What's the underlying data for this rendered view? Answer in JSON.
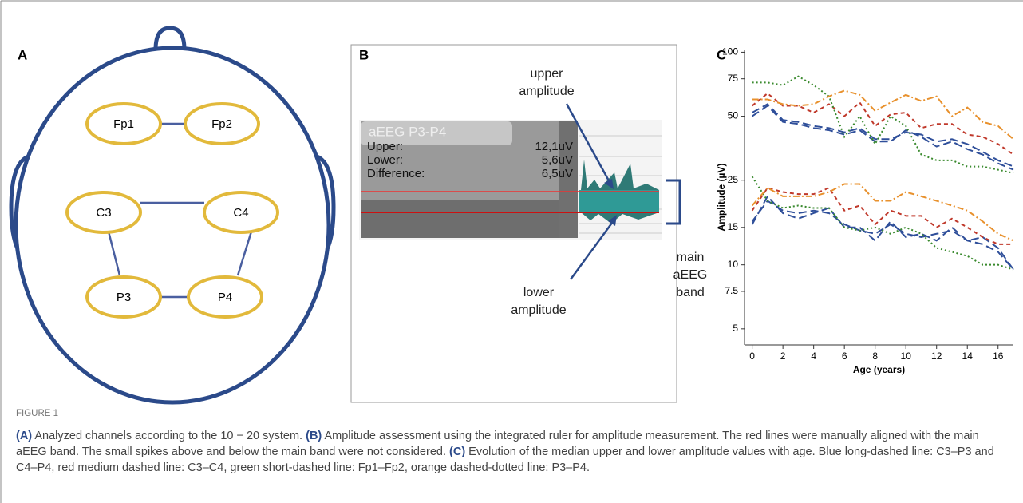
{
  "panels": {
    "a": {
      "label": "A",
      "electrodes": [
        "Fp1",
        "Fp2",
        "C3",
        "C4",
        "P3",
        "P4"
      ]
    },
    "b": {
      "label": "B",
      "box_title": "aEEG P3-P4",
      "rows": [
        [
          "Upper:",
          "12,1uV"
        ],
        [
          "Lower:",
          "5,6uV"
        ],
        [
          "Difference:",
          "6,5uV"
        ]
      ],
      "annotations": [
        "upper amplitude",
        "lower amplitude",
        "main aEEG band"
      ]
    },
    "c": {
      "label": "C"
    }
  },
  "chart_data": {
    "type": "line",
    "ylabel": "Amplitude (µV)",
    "xlabel": "Age (years)",
    "log_y": true,
    "x": [
      0,
      1,
      2,
      3,
      4,
      5,
      6,
      7,
      8,
      9,
      10,
      11,
      12,
      13,
      14,
      15,
      16,
      17
    ],
    "xlim": [
      -0.5,
      17
    ],
    "xticks": [
      0,
      2,
      4,
      6,
      8,
      10,
      12,
      14,
      16
    ],
    "ylim": [
      4.2,
      103
    ],
    "yticks": [
      5,
      7.5,
      10,
      15,
      25,
      50,
      75,
      100
    ],
    "series": [
      {
        "color": "#2f4f9a",
        "dash": "10,5",
        "values": [
          50,
          56,
          47,
          46,
          44,
          43,
          41,
          43,
          38,
          38,
          43,
          40,
          36,
          38,
          35,
          33,
          30,
          28
        ]
      },
      {
        "color": "#2f4f9a",
        "dash": "10,5",
        "values": [
          52,
          57,
          48,
          47,
          45,
          44,
          42,
          44,
          39,
          39,
          42,
          41,
          38,
          39,
          37,
          34,
          31,
          29
        ]
      },
      {
        "color": "#c0392b",
        "dash": "5,4",
        "values": [
          56,
          64,
          56,
          56,
          52,
          57,
          50,
          58,
          45,
          51,
          52,
          44,
          46,
          46,
          41,
          40,
          37,
          33
        ]
      },
      {
        "color": "#3a8a2e",
        "dash": "2,3",
        "values": [
          72,
          72,
          70,
          77,
          70,
          62,
          40,
          50,
          37,
          50,
          45,
          33,
          31,
          31,
          29,
          29,
          28,
          27
        ]
      },
      {
        "color": "#e8912d",
        "dash": "8,3,2,3",
        "values": [
          60,
          60,
          57,
          56,
          57,
          62,
          66,
          63,
          53,
          58,
          63,
          59,
          62,
          50,
          55,
          47,
          45,
          39
        ]
      },
      {
        "color": "#2f4f9a",
        "dash": "10,5",
        "values": [
          15.5,
          21,
          17.5,
          16.5,
          17.5,
          18.5,
          15,
          15,
          13,
          16,
          13.5,
          14,
          13,
          15,
          13,
          13.5,
          12,
          9.5
        ]
      },
      {
        "color": "#2f4f9a",
        "dash": "10,5",
        "values": [
          16,
          20,
          18,
          17.5,
          18,
          17.5,
          15.5,
          14.5,
          14,
          15.5,
          14,
          13.5,
          14,
          14.5,
          13,
          12.5,
          11.5,
          9.5
        ]
      },
      {
        "color": "#c0392b",
        "dash": "5,4",
        "values": [
          18,
          23,
          22,
          21.5,
          21.5,
          23,
          18,
          19,
          15.5,
          18,
          17,
          17,
          15,
          16.5,
          15,
          13.5,
          12.5,
          12.5
        ]
      },
      {
        "color": "#3a8a2e",
        "dash": "2,3",
        "values": [
          26,
          20,
          18.5,
          19,
          18.5,
          18.5,
          15,
          14.5,
          15,
          14,
          15,
          14,
          12,
          11.5,
          11,
          10,
          10,
          9.5
        ]
      },
      {
        "color": "#e8912d",
        "dash": "8,3,2,3",
        "values": [
          19,
          23,
          21,
          21,
          21,
          22,
          24,
          24,
          20,
          20,
          22,
          21,
          20,
          19,
          18,
          16,
          14,
          13
        ]
      }
    ]
  },
  "caption": {
    "label": "FIGURE 1",
    "segments": [
      [
        "(A)",
        " Analyzed channels according to the 10 − 20 system. "
      ],
      [
        "(B)",
        " Amplitude assessment using the integrated ruler for amplitude measurement. The red lines were manually aligned with the main aEEG band. The small spikes above and below the main band were not considered. "
      ],
      [
        "(C)",
        " Evolution of the median upper and lower amplitude values with age. Blue long-dashed line: C3–P3 and C4–P4, red medium dashed line: C3–C4, green short-dashed line: Fp1–Fp2, orange dashed-dotted line: P3–P4."
      ]
    ]
  }
}
